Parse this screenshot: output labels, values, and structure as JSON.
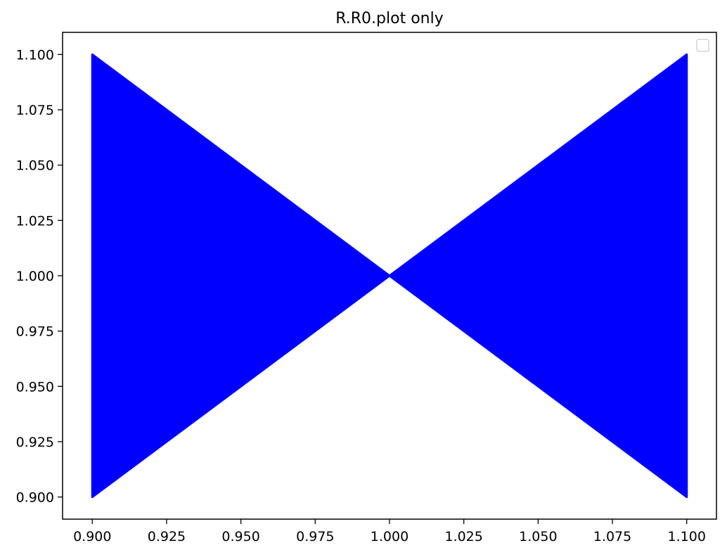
{
  "chart_data": {
    "type": "area",
    "title": "R.R0.plot only",
    "xlabel": "",
    "ylabel": "",
    "xlim": [
      0.89,
      1.11
    ],
    "ylim": [
      0.89,
      1.11
    ],
    "x_ticks": [
      "0.900",
      "0.925",
      "0.950",
      "0.975",
      "1.000",
      "1.025",
      "1.050",
      "1.075",
      "1.100"
    ],
    "y_ticks": [
      "0.900",
      "0.925",
      "0.950",
      "0.975",
      "1.000",
      "1.025",
      "1.050",
      "1.075",
      "1.100"
    ],
    "grid": false,
    "legend": {
      "placement": "top-right",
      "entries": []
    },
    "colors": {
      "fill": "#0000ff",
      "axes": "#000000",
      "background": "#ffffff"
    },
    "series": [
      {
        "polygon": [
          {
            "x": 0.9,
            "y": 1.1
          },
          {
            "x": 1.0,
            "y": 1.0
          },
          {
            "x": 0.9,
            "y": 0.9
          }
        ]
      },
      {
        "polygon": [
          {
            "x": 1.1,
            "y": 1.1
          },
          {
            "x": 1.0,
            "y": 1.0
          },
          {
            "x": 1.1,
            "y": 0.9
          }
        ]
      }
    ]
  }
}
